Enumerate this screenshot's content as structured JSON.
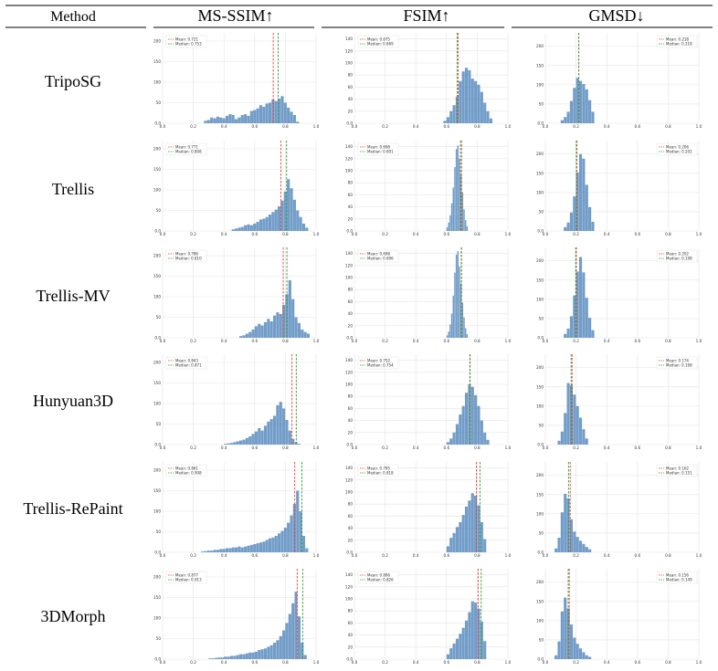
{
  "table": {
    "header": {
      "method": "Method",
      "cols": [
        "MS-SSIM↑",
        "FSIM↑",
        "GMSD↓"
      ]
    },
    "rows": [
      "TripoSG",
      "Trellis",
      "Trellis-MV",
      "Hunyuan3D",
      "Trellis-RePaint",
      "3DMorph"
    ]
  },
  "colors": {
    "bar": "#5b8cbf",
    "mean": "#e8413c",
    "median": "#2ca02c",
    "grid": "#e3e3e3"
  },
  "chart_data": [
    {
      "metric": "MS-SSIM",
      "method": "TripoSG",
      "type": "bar",
      "x_start": 0.27,
      "bin_width": 0.02,
      "ylim": [
        0,
        220
      ],
      "yticks": [
        0,
        50,
        100,
        150,
        200
      ],
      "xticks": [
        0.0,
        0.2,
        0.4,
        0.6,
        0.8,
        1.0
      ],
      "values": [
        6,
        8,
        14,
        12,
        16,
        14,
        12,
        18,
        22,
        20,
        10,
        14,
        20,
        22,
        18,
        30,
        32,
        36,
        44,
        40,
        48,
        50,
        58,
        54,
        60,
        66,
        50,
        38,
        28,
        20,
        4
      ],
      "legend": [
        "Mean: 0.721",
        "Median: 0.753"
      ],
      "mean": 0.721,
      "median": 0.753
    },
    {
      "metric": "FSIM",
      "method": "TripoSG",
      "type": "bar",
      "x_start": 0.58,
      "bin_width": 0.02,
      "ylim": [
        0,
        150
      ],
      "yticks": [
        0,
        20,
        40,
        60,
        80,
        100,
        120,
        140
      ],
      "xticks": [
        0.0,
        0.2,
        0.4,
        0.6,
        0.8,
        1.0
      ],
      "values": [
        4,
        10,
        20,
        30,
        44,
        70,
        86,
        92,
        88,
        74,
        70,
        64,
        52,
        34,
        20,
        8
      ],
      "legend": [
        "Mean: 0.675",
        "Median: 0.669"
      ],
      "mean": 0.675,
      "median": 0.669
    },
    {
      "metric": "GMSD",
      "method": "TripoSG",
      "type": "bar",
      "x_start": 0.1,
      "bin_width": 0.02,
      "ylim": [
        0,
        235
      ],
      "yticks": [
        0,
        50,
        100,
        150,
        200
      ],
      "xticks": [
        0.0,
        0.2,
        0.4,
        0.6,
        0.8,
        1.0
      ],
      "values": [
        8,
        16,
        30,
        58,
        92,
        118,
        110,
        102,
        88,
        60,
        30
      ],
      "legend": [
        "Mean: 0.218",
        "Median: 0.218"
      ],
      "mean": 0.218,
      "median": 0.218
    },
    {
      "metric": "MS-SSIM",
      "method": "Trellis",
      "type": "bar",
      "x_start": 0.45,
      "bin_width": 0.02,
      "ylim": [
        0,
        220
      ],
      "yticks": [
        0,
        50,
        100,
        150,
        200
      ],
      "xticks": [
        0.0,
        0.2,
        0.4,
        0.6,
        0.8,
        1.0
      ],
      "values": [
        4,
        6,
        8,
        10,
        14,
        16,
        14,
        18,
        22,
        28,
        30,
        34,
        40,
        46,
        52,
        60,
        74,
        96,
        126,
        104,
        76,
        50,
        34,
        18,
        8
      ],
      "legend": [
        "Mean: 0.771",
        "Median: 0.808"
      ],
      "mean": 0.771,
      "median": 0.808
    },
    {
      "metric": "FSIM",
      "method": "Trellis",
      "type": "bar",
      "x_start": 0.6,
      "bin_width": 0.01,
      "ylim": [
        0,
        150
      ],
      "yticks": [
        0,
        20,
        40,
        60,
        80,
        100,
        120,
        140
      ],
      "xticks": [
        0.0,
        0.2,
        0.4,
        0.6,
        0.8,
        1.0
      ],
      "values": [
        6,
        14,
        26,
        46,
        72,
        106,
        136,
        142,
        120,
        92,
        64,
        36,
        18,
        8
      ],
      "legend": [
        "Mean: 0.698",
        "Median: 0.691"
      ],
      "mean": 0.698,
      "median": 0.691
    },
    {
      "metric": "GMSD",
      "method": "Trellis",
      "type": "bar",
      "x_start": 0.12,
      "bin_width": 0.02,
      "ylim": [
        0,
        235
      ],
      "yticks": [
        0,
        50,
        100,
        150,
        200
      ],
      "xticks": [
        0.0,
        0.2,
        0.4,
        0.6,
        0.8,
        1.0
      ],
      "values": [
        10,
        22,
        48,
        90,
        152,
        200,
        188,
        120,
        62,
        24
      ],
      "legend": [
        "Mean: 0.206",
        "Median: 0.202"
      ],
      "mean": 0.206,
      "median": 0.202
    },
    {
      "metric": "MS-SSIM",
      "method": "Trellis-MV",
      "type": "bar",
      "x_start": 0.5,
      "bin_width": 0.02,
      "ylim": [
        0,
        220
      ],
      "yticks": [
        0,
        50,
        100,
        150,
        200
      ],
      "xticks": [
        0.0,
        0.2,
        0.4,
        0.6,
        0.8,
        1.0
      ],
      "values": [
        4,
        6,
        10,
        14,
        20,
        28,
        34,
        30,
        38,
        46,
        40,
        54,
        62,
        58,
        80,
        106,
        140,
        94,
        50,
        36,
        20,
        14,
        10
      ],
      "legend": [
        "Mean: 0.786",
        "Median: 0.810"
      ],
      "mean": 0.786,
      "median": 0.81
    },
    {
      "metric": "FSIM",
      "method": "Trellis-MV",
      "type": "bar",
      "x_start": 0.6,
      "bin_width": 0.01,
      "ylim": [
        0,
        150
      ],
      "yticks": [
        0,
        20,
        40,
        60,
        80,
        100,
        120,
        140
      ],
      "xticks": [
        0.0,
        0.2,
        0.4,
        0.6,
        0.8,
        1.0
      ],
      "values": [
        4,
        10,
        22,
        40,
        70,
        108,
        138,
        144,
        118,
        90,
        58,
        34,
        16,
        6
      ],
      "legend": [
        "Mean: 0.698",
        "Median: 0.696"
      ],
      "mean": 0.698,
      "median": 0.696
    },
    {
      "metric": "GMSD",
      "method": "Trellis-MV",
      "type": "bar",
      "x_start": 0.12,
      "bin_width": 0.02,
      "ylim": [
        0,
        235
      ],
      "yticks": [
        0,
        50,
        100,
        150,
        200
      ],
      "xticks": [
        0.0,
        0.2,
        0.4,
        0.6,
        0.8,
        1.0
      ],
      "values": [
        10,
        24,
        56,
        110,
        172,
        210,
        170,
        104,
        52,
        20
      ],
      "legend": [
        "Mean: 0.202",
        "Median: 0.198"
      ],
      "mean": 0.202,
      "median": 0.198
    },
    {
      "metric": "MS-SSIM",
      "method": "Hunyuan3D",
      "type": "bar",
      "x_start": 0.4,
      "bin_width": 0.02,
      "ylim": [
        0,
        220
      ],
      "yticks": [
        0,
        50,
        100,
        150,
        200
      ],
      "xticks": [
        0.0,
        0.2,
        0.4,
        0.6,
        0.8,
        1.0
      ],
      "values": [
        2,
        3,
        4,
        6,
        8,
        10,
        12,
        16,
        20,
        26,
        32,
        40,
        34,
        46,
        56,
        62,
        70,
        96,
        104,
        88,
        60,
        34,
        14,
        6,
        2
      ],
      "legend": [
        "Mean: 0.843",
        "Median: 0.871"
      ],
      "mean": 0.843,
      "median": 0.871
    },
    {
      "metric": "FSIM",
      "method": "Hunyuan3D",
      "type": "bar",
      "x_start": 0.6,
      "bin_width": 0.02,
      "ylim": [
        0,
        150
      ],
      "yticks": [
        0,
        20,
        40,
        60,
        80,
        100,
        120,
        140
      ],
      "xticks": [
        0.0,
        0.2,
        0.4,
        0.6,
        0.8,
        1.0
      ],
      "values": [
        4,
        10,
        20,
        34,
        50,
        64,
        86,
        100,
        96,
        82,
        64,
        40,
        20,
        8
      ],
      "legend": [
        "Mean: 0.752",
        "Median: 0.754"
      ],
      "mean": 0.752,
      "median": 0.754
    },
    {
      "metric": "GMSD",
      "method": "Hunyuan3D",
      "type": "bar",
      "x_start": 0.08,
      "bin_width": 0.02,
      "ylim": [
        0,
        235
      ],
      "yticks": [
        0,
        50,
        100,
        150,
        200
      ],
      "xticks": [
        0.0,
        0.2,
        0.4,
        0.6,
        0.8,
        1.0
      ],
      "values": [
        10,
        34,
        82,
        160,
        154,
        130,
        100,
        70,
        40,
        16
      ],
      "legend": [
        "Mean: 0.174",
        "Median: 0.168"
      ],
      "mean": 0.174,
      "median": 0.168
    },
    {
      "metric": "MS-SSIM",
      "method": "Trellis-RePaint",
      "type": "bar",
      "x_start": 0.25,
      "bin_width": 0.02,
      "ylim": [
        0,
        220
      ],
      "yticks": [
        0,
        50,
        100,
        150,
        200
      ],
      "xticks": [
        0.0,
        0.2,
        0.4,
        0.6,
        0.8,
        1.0
      ],
      "values": [
        2,
        3,
        4,
        4,
        6,
        6,
        8,
        8,
        10,
        10,
        12,
        12,
        14,
        12,
        14,
        16,
        18,
        20,
        22,
        24,
        26,
        30,
        34,
        36,
        40,
        46,
        52,
        60,
        72,
        90,
        118,
        150,
        100,
        40,
        10
      ],
      "legend": [
        "Mean: 0.861",
        "Median: 0.908"
      ],
      "mean": 0.861,
      "median": 0.908
    },
    {
      "metric": "FSIM",
      "method": "Trellis-RePaint",
      "type": "bar",
      "x_start": 0.6,
      "bin_width": 0.02,
      "ylim": [
        0,
        150
      ],
      "yticks": [
        0,
        20,
        40,
        60,
        80,
        100,
        120,
        140
      ],
      "xticks": [
        0.0,
        0.2,
        0.4,
        0.6,
        0.8,
        1.0
      ],
      "values": [
        10,
        24,
        32,
        42,
        50,
        62,
        76,
        86,
        98,
        94,
        78,
        50,
        22
      ],
      "legend": [
        "Mean: 0.795",
        "Median: 0.818"
      ],
      "mean": 0.795,
      "median": 0.818
    },
    {
      "metric": "GMSD",
      "method": "Trellis-RePaint",
      "type": "bar",
      "x_start": 0.06,
      "bin_width": 0.02,
      "ylim": [
        0,
        235
      ],
      "yticks": [
        0,
        50,
        100,
        150,
        200
      ],
      "xticks": [
        0.0,
        0.2,
        0.4,
        0.6,
        0.8,
        1.0
      ],
      "values": [
        10,
        38,
        104,
        152,
        140,
        86,
        54,
        40,
        30,
        22,
        14,
        8
      ],
      "legend": [
        "Mean: 0.162",
        "Median: 0.151"
      ],
      "mean": 0.162,
      "median": 0.151
    },
    {
      "metric": "MS-SSIM",
      "method": "3DMorph",
      "type": "bar",
      "x_start": 0.3,
      "bin_width": 0.02,
      "ylim": [
        0,
        220
      ],
      "yticks": [
        0,
        50,
        100,
        150,
        200
      ],
      "xticks": [
        0.0,
        0.2,
        0.4,
        0.6,
        0.8,
        1.0
      ],
      "values": [
        2,
        2,
        3,
        4,
        4,
        6,
        6,
        8,
        8,
        10,
        12,
        12,
        14,
        16,
        16,
        18,
        22,
        24,
        26,
        30,
        34,
        40,
        46,
        56,
        70,
        88,
        110,
        136,
        164,
        104,
        40,
        10
      ],
      "legend": [
        "Mean: 0.877",
        "Median: 0.913"
      ],
      "mean": 0.877,
      "median": 0.913
    },
    {
      "metric": "FSIM",
      "method": "3DMorph",
      "type": "bar",
      "x_start": 0.6,
      "bin_width": 0.02,
      "ylim": [
        0,
        150
      ],
      "yticks": [
        0,
        20,
        40,
        60,
        80,
        100,
        120,
        140
      ],
      "xticks": [
        0.0,
        0.2,
        0.4,
        0.6,
        0.8,
        1.0
      ],
      "values": [
        8,
        18,
        26,
        34,
        42,
        52,
        64,
        78,
        96,
        94,
        84,
        62,
        30
      ],
      "legend": [
        "Mean: 0.806",
        "Median: 0.826"
      ],
      "mean": 0.806,
      "median": 0.826
    },
    {
      "metric": "GMSD",
      "method": "3DMorph",
      "type": "bar",
      "x_start": 0.06,
      "bin_width": 0.02,
      "ylim": [
        0,
        235
      ],
      "yticks": [
        0,
        50,
        100,
        150,
        200
      ],
      "xticks": [
        0.0,
        0.2,
        0.4,
        0.6,
        0.8,
        1.0
      ],
      "values": [
        10,
        46,
        124,
        160,
        132,
        90,
        56,
        40,
        28,
        18,
        10,
        6
      ],
      "legend": [
        "Mean: 0.156",
        "Median: 0.149"
      ],
      "mean": 0.156,
      "median": 0.149
    }
  ]
}
